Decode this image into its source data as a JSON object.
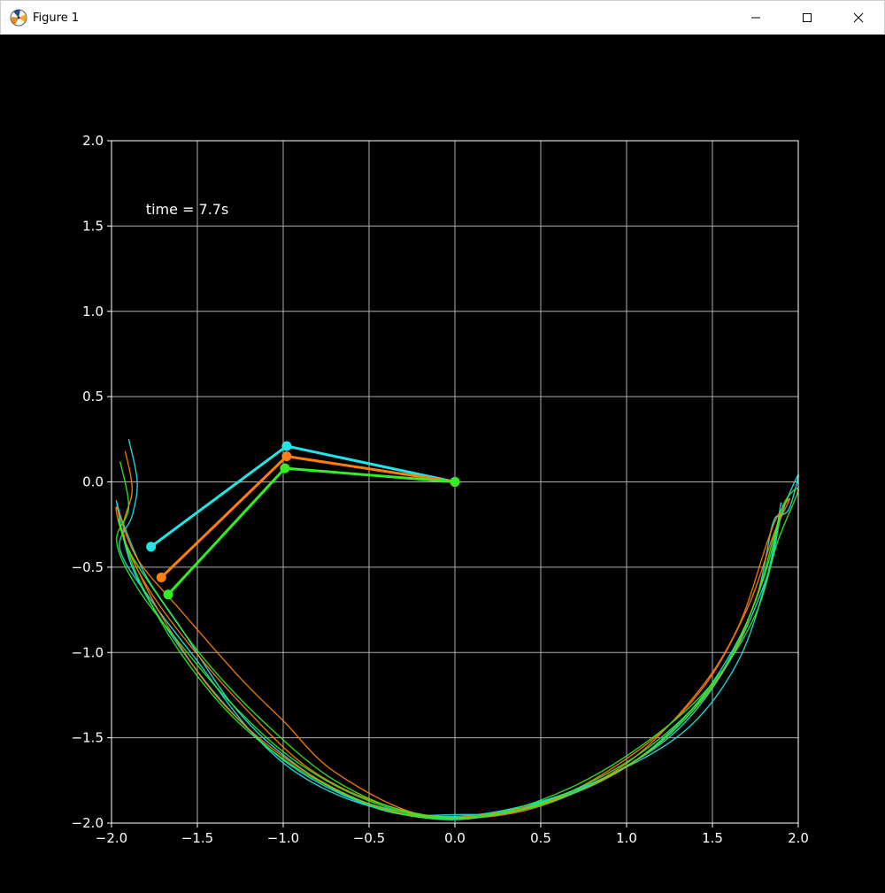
{
  "window": {
    "title": "Figure 1",
    "icons": {
      "app": "matplotlib-icon",
      "minimize": "minimize-icon",
      "maximize": "maximize-icon",
      "close": "close-icon"
    }
  },
  "chart_data": {
    "type": "line",
    "title": "",
    "xlabel": "",
    "ylabel": "",
    "xlim": [
      -2.0,
      2.0
    ],
    "ylim": [
      -2.0,
      2.0
    ],
    "grid": true,
    "background": "#000000",
    "x_ticks": [
      "−2.0",
      "−1.5",
      "−1.0",
      "−0.5",
      "0.0",
      "0.5",
      "1.0",
      "1.5",
      "2.0"
    ],
    "y_ticks": [
      "2.0",
      "1.5",
      "1.0",
      "0.5",
      "0.0",
      "−0.5",
      "−1.0",
      "−1.5",
      "−2.0"
    ],
    "x_tick_values": [
      -2.0,
      -1.5,
      -1.0,
      -0.5,
      0.0,
      0.5,
      1.0,
      1.5,
      2.0
    ],
    "y_tick_values": [
      2.0,
      1.5,
      1.0,
      0.5,
      0.0,
      -0.5,
      -1.0,
      -1.5,
      -2.0
    ],
    "annotation": {
      "text": "time = 7.7s",
      "x": -1.8,
      "y": 1.6
    },
    "pendulums": [
      {
        "color": "#22e6e6",
        "points": [
          [
            0.0,
            0.0
          ],
          [
            -0.98,
            0.21
          ],
          [
            -1.77,
            -0.38
          ]
        ],
        "trace": [
          [
            -1.9,
            0.25
          ],
          [
            -1.85,
            0.0
          ],
          [
            -1.88,
            -0.2
          ],
          [
            -1.95,
            -0.4
          ],
          [
            -1.75,
            -0.72
          ],
          [
            -1.5,
            -1.05
          ],
          [
            -1.2,
            -1.45
          ],
          [
            -0.9,
            -1.72
          ],
          [
            -0.5,
            -1.9
          ],
          [
            0.0,
            -1.98
          ],
          [
            0.5,
            -1.88
          ],
          [
            0.95,
            -1.7
          ],
          [
            1.3,
            -1.42
          ],
          [
            1.55,
            -1.1
          ],
          [
            1.75,
            -0.7
          ],
          [
            1.85,
            -0.25
          ],
          [
            1.9,
            -0.2
          ],
          [
            1.95,
            -0.15
          ],
          [
            2.0,
            0.04
          ],
          [
            1.9,
            -0.2
          ],
          [
            1.82,
            -0.55
          ],
          [
            1.6,
            -1.05
          ],
          [
            1.3,
            -1.45
          ],
          [
            0.9,
            -1.72
          ],
          [
            0.4,
            -1.92
          ],
          [
            0.0,
            -1.95
          ],
          [
            -0.4,
            -1.93
          ],
          [
            -0.9,
            -1.7
          ],
          [
            -1.3,
            -1.35
          ],
          [
            -1.65,
            -0.9
          ],
          [
            -1.88,
            -0.5
          ],
          [
            -1.97,
            -0.12
          ],
          [
            -1.93,
            -0.25
          ],
          [
            -1.8,
            -0.55
          ],
          [
            -1.6,
            -0.85
          ],
          [
            -1.3,
            -1.3
          ],
          [
            -1.0,
            -1.6
          ],
          [
            -0.6,
            -1.85
          ],
          [
            -0.1,
            -1.96
          ],
          [
            0.4,
            -1.9
          ],
          [
            0.9,
            -1.72
          ],
          [
            1.35,
            -1.45
          ],
          [
            1.65,
            -1.05
          ],
          [
            1.82,
            -0.55
          ],
          [
            1.9,
            -0.12
          ]
        ]
      },
      {
        "color": "#ff7f0e",
        "points": [
          [
            0.0,
            0.0
          ],
          [
            -0.98,
            0.15
          ],
          [
            -1.71,
            -0.56
          ]
        ],
        "trace": [
          [
            -1.92,
            0.18
          ],
          [
            -1.88,
            -0.05
          ],
          [
            -1.93,
            -0.3
          ],
          [
            -1.8,
            -0.6
          ],
          [
            -1.55,
            -0.95
          ],
          [
            -1.2,
            -1.35
          ],
          [
            -0.85,
            -1.68
          ],
          [
            -0.45,
            -1.88
          ],
          [
            0.0,
            -1.97
          ],
          [
            0.5,
            -1.9
          ],
          [
            1.0,
            -1.65
          ],
          [
            1.4,
            -1.25
          ],
          [
            1.65,
            -0.85
          ],
          [
            1.82,
            -0.35
          ],
          [
            1.88,
            -0.2
          ],
          [
            1.95,
            -0.1
          ],
          [
            1.86,
            -0.3
          ],
          [
            1.7,
            -0.75
          ],
          [
            1.45,
            -1.2
          ],
          [
            1.1,
            -1.55
          ],
          [
            0.6,
            -1.85
          ],
          [
            0.1,
            -1.97
          ],
          [
            -0.4,
            -1.92
          ],
          [
            -0.9,
            -1.68
          ],
          [
            -1.35,
            -1.3
          ],
          [
            -1.7,
            -0.8
          ],
          [
            -1.92,
            -0.35
          ],
          [
            -1.97,
            -0.15
          ],
          [
            -1.85,
            -0.45
          ],
          [
            -1.6,
            -0.75
          ],
          [
            -1.25,
            -1.15
          ],
          [
            -1.0,
            -1.4
          ],
          [
            -0.7,
            -1.7
          ],
          [
            -0.2,
            -1.95
          ],
          [
            0.3,
            -1.93
          ],
          [
            0.8,
            -1.78
          ],
          [
            1.25,
            -1.48
          ],
          [
            1.6,
            -1.05
          ],
          [
            1.8,
            -0.55
          ]
        ]
      },
      {
        "color": "#33ee22",
        "points": [
          [
            0.0,
            0.0
          ],
          [
            -0.99,
            0.08
          ],
          [
            -1.67,
            -0.66
          ]
        ],
        "trace": [
          [
            -1.95,
            0.12
          ],
          [
            -1.9,
            -0.15
          ],
          [
            -1.97,
            -0.35
          ],
          [
            -1.85,
            -0.62
          ],
          [
            -1.6,
            -0.95
          ],
          [
            -1.3,
            -1.3
          ],
          [
            -0.95,
            -1.62
          ],
          [
            -0.55,
            -1.85
          ],
          [
            -0.1,
            -1.97
          ],
          [
            0.4,
            -1.92
          ],
          [
            0.85,
            -1.75
          ],
          [
            1.25,
            -1.48
          ],
          [
            1.55,
            -1.12
          ],
          [
            1.75,
            -0.7
          ],
          [
            1.85,
            -0.35
          ],
          [
            1.92,
            -0.12
          ],
          [
            2.0,
            -0.05
          ],
          [
            1.88,
            -0.35
          ],
          [
            1.75,
            -0.78
          ],
          [
            1.5,
            -1.18
          ],
          [
            1.15,
            -1.5
          ],
          [
            0.7,
            -1.78
          ],
          [
            0.2,
            -1.95
          ],
          [
            -0.3,
            -1.95
          ],
          [
            -0.8,
            -1.75
          ],
          [
            -1.25,
            -1.42
          ],
          [
            -1.6,
            -1.0
          ],
          [
            -1.85,
            -0.55
          ],
          [
            -1.96,
            -0.22
          ],
          [
            -1.9,
            -0.4
          ],
          [
            -1.72,
            -0.68
          ],
          [
            -1.45,
            -1.05
          ],
          [
            -1.1,
            -1.42
          ],
          [
            -0.7,
            -1.75
          ],
          [
            -0.25,
            -1.94
          ],
          [
            0.25,
            -1.95
          ],
          [
            0.75,
            -1.78
          ],
          [
            1.2,
            -1.5
          ],
          [
            1.55,
            -1.12
          ],
          [
            1.78,
            -0.62
          ],
          [
            1.9,
            -0.18
          ]
        ]
      }
    ]
  }
}
